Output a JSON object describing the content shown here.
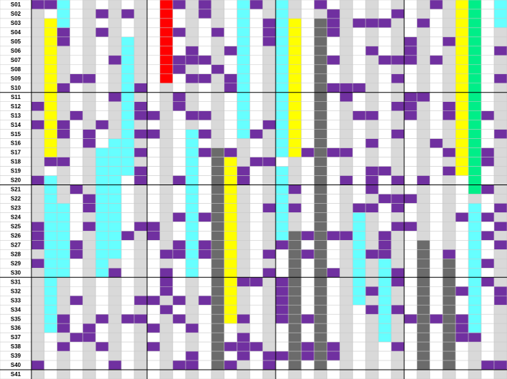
{
  "rows": [
    "S01",
    "S02",
    "S03",
    "S04",
    "S05",
    "S06",
    "S07",
    "S08",
    "S09",
    "S10",
    "S11",
    "S12",
    "S13",
    "S14",
    "S15",
    "S16",
    "S17",
    "S18",
    "S19",
    "S20",
    "S21",
    "S22",
    "S23",
    "S24",
    "S25",
    "S26",
    "S27",
    "S28",
    "S29",
    "S30",
    "S31",
    "S32",
    "S33",
    "S34",
    "S35",
    "S36",
    "S37",
    "S38",
    "S39",
    "S40",
    "S41"
  ]
}
